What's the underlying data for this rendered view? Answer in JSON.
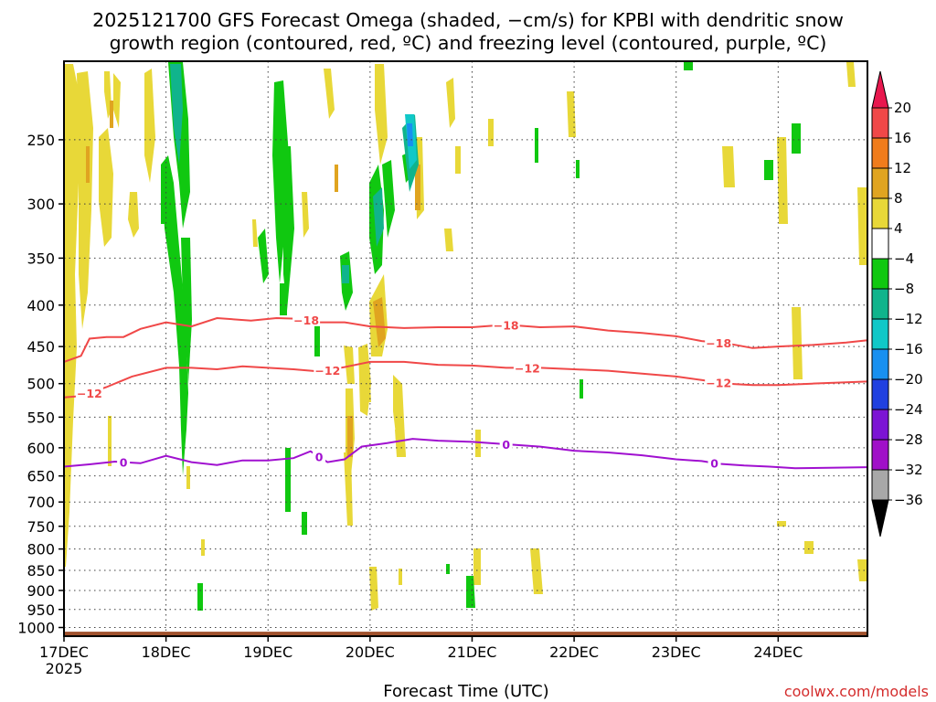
{
  "title_line1": "2025121700 GFS Forecast Omega (shaded, −cm/s) for KPBI with dendritic snow",
  "title_line2": "growth region (contoured, red, ºC) and freezing level (contoured, purple, ºC)",
  "credit": "coolwx.com/models",
  "chart_data": {
    "type": "time-height",
    "xlabel": "Forecast Time (UTC)",
    "year_label": "2025",
    "x_range_hours": [
      0,
      189
    ],
    "x_ticks": [
      {
        "hour": 0,
        "label": "17DEC"
      },
      {
        "hour": 24,
        "label": "18DEC"
      },
      {
        "hour": 48,
        "label": "19DEC"
      },
      {
        "hour": 72,
        "label": "20DEC"
      },
      {
        "hour": 96,
        "label": "21DEC"
      },
      {
        "hour": 120,
        "label": "22DEC"
      },
      {
        "hour": 144,
        "label": "23DEC"
      },
      {
        "hour": 168,
        "label": "24DEC"
      }
    ],
    "ylabel": "Pressure (hPa)",
    "y_range_hpa": [
      200,
      1025
    ],
    "y_ticks": [
      250,
      300,
      350,
      400,
      450,
      500,
      550,
      600,
      650,
      700,
      750,
      800,
      850,
      900,
      950,
      1000
    ],
    "colorbar": {
      "levels": [
        "20",
        "16",
        "12",
        "8",
        "4",
        "−4",
        "−8",
        "−12",
        "−16",
        "−20",
        "−24",
        "−28",
        "−32",
        "−36"
      ],
      "colors": [
        "#e8184e",
        "#f04848",
        "#f07c1c",
        "#e0a420",
        "#e8d838",
        "#ffffff",
        "#10c810",
        "#10b48c",
        "#10c8c8",
        "#1890f0",
        "#2040e0",
        "#7c14d4",
        "#a010c8",
        "#a8a8a8",
        "#000000"
      ]
    },
    "contours": [
      {
        "label": "−18",
        "color": "#f04848",
        "points": [
          [
            0,
            470
          ],
          [
            4,
            462
          ],
          [
            6,
            440
          ],
          [
            10,
            438
          ],
          [
            14,
            438
          ],
          [
            18,
            428
          ],
          [
            24,
            420
          ],
          [
            30,
            425
          ],
          [
            36,
            415
          ],
          [
            44,
            418
          ],
          [
            50,
            415
          ],
          [
            56,
            416
          ],
          [
            60,
            420
          ],
          [
            66,
            420
          ],
          [
            72,
            425
          ],
          [
            80,
            427
          ],
          [
            88,
            426
          ],
          [
            96,
            426
          ],
          [
            104,
            423
          ],
          [
            112,
            426
          ],
          [
            120,
            425
          ],
          [
            128,
            430
          ],
          [
            136,
            433
          ],
          [
            144,
            437
          ],
          [
            150,
            443
          ],
          [
            156,
            446
          ],
          [
            162,
            452
          ],
          [
            168,
            450
          ],
          [
            176,
            448
          ],
          [
            184,
            445
          ],
          [
            189,
            442
          ]
        ],
        "label_hours": [
          57,
          104,
          154
        ]
      },
      {
        "label": "−12",
        "color": "#f04848",
        "points": [
          [
            0,
            520
          ],
          [
            4,
            518
          ],
          [
            10,
            505
          ],
          [
            16,
            490
          ],
          [
            24,
            478
          ],
          [
            30,
            478
          ],
          [
            36,
            480
          ],
          [
            42,
            476
          ],
          [
            48,
            478
          ],
          [
            54,
            480
          ],
          [
            60,
            483
          ],
          [
            66,
            477
          ],
          [
            72,
            470
          ],
          [
            80,
            470
          ],
          [
            88,
            474
          ],
          [
            96,
            475
          ],
          [
            104,
            478
          ],
          [
            112,
            478
          ],
          [
            120,
            480
          ],
          [
            128,
            482
          ],
          [
            136,
            486
          ],
          [
            144,
            490
          ],
          [
            150,
            495
          ],
          [
            156,
            500
          ],
          [
            162,
            502
          ],
          [
            168,
            502
          ],
          [
            176,
            500
          ],
          [
            184,
            498
          ],
          [
            189,
            497
          ]
        ],
        "label_hours": [
          6,
          62,
          109,
          154
        ]
      },
      {
        "label": "0",
        "color": "#a010d0",
        "points": [
          [
            0,
            633
          ],
          [
            6,
            629
          ],
          [
            12,
            624
          ],
          [
            18,
            627
          ],
          [
            24,
            614
          ],
          [
            30,
            625
          ],
          [
            36,
            630
          ],
          [
            42,
            622
          ],
          [
            48,
            622
          ],
          [
            54,
            618
          ],
          [
            58,
            606
          ],
          [
            62,
            625
          ],
          [
            66,
            620
          ],
          [
            70,
            598
          ],
          [
            76,
            592
          ],
          [
            82,
            585
          ],
          [
            88,
            588
          ],
          [
            96,
            590
          ],
          [
            104,
            594
          ],
          [
            112,
            598
          ],
          [
            120,
            605
          ],
          [
            128,
            608
          ],
          [
            136,
            613
          ],
          [
            144,
            620
          ],
          [
            150,
            623
          ],
          [
            154,
            628
          ],
          [
            160,
            631
          ],
          [
            166,
            633
          ],
          [
            172,
            636
          ],
          [
            180,
            635
          ],
          [
            189,
            634
          ]
        ],
        "label_hours": [
          14,
          60,
          104,
          153
        ]
      }
    ],
    "terrain": {
      "color": "#a0522d",
      "top_hpa": 1012
    }
  }
}
